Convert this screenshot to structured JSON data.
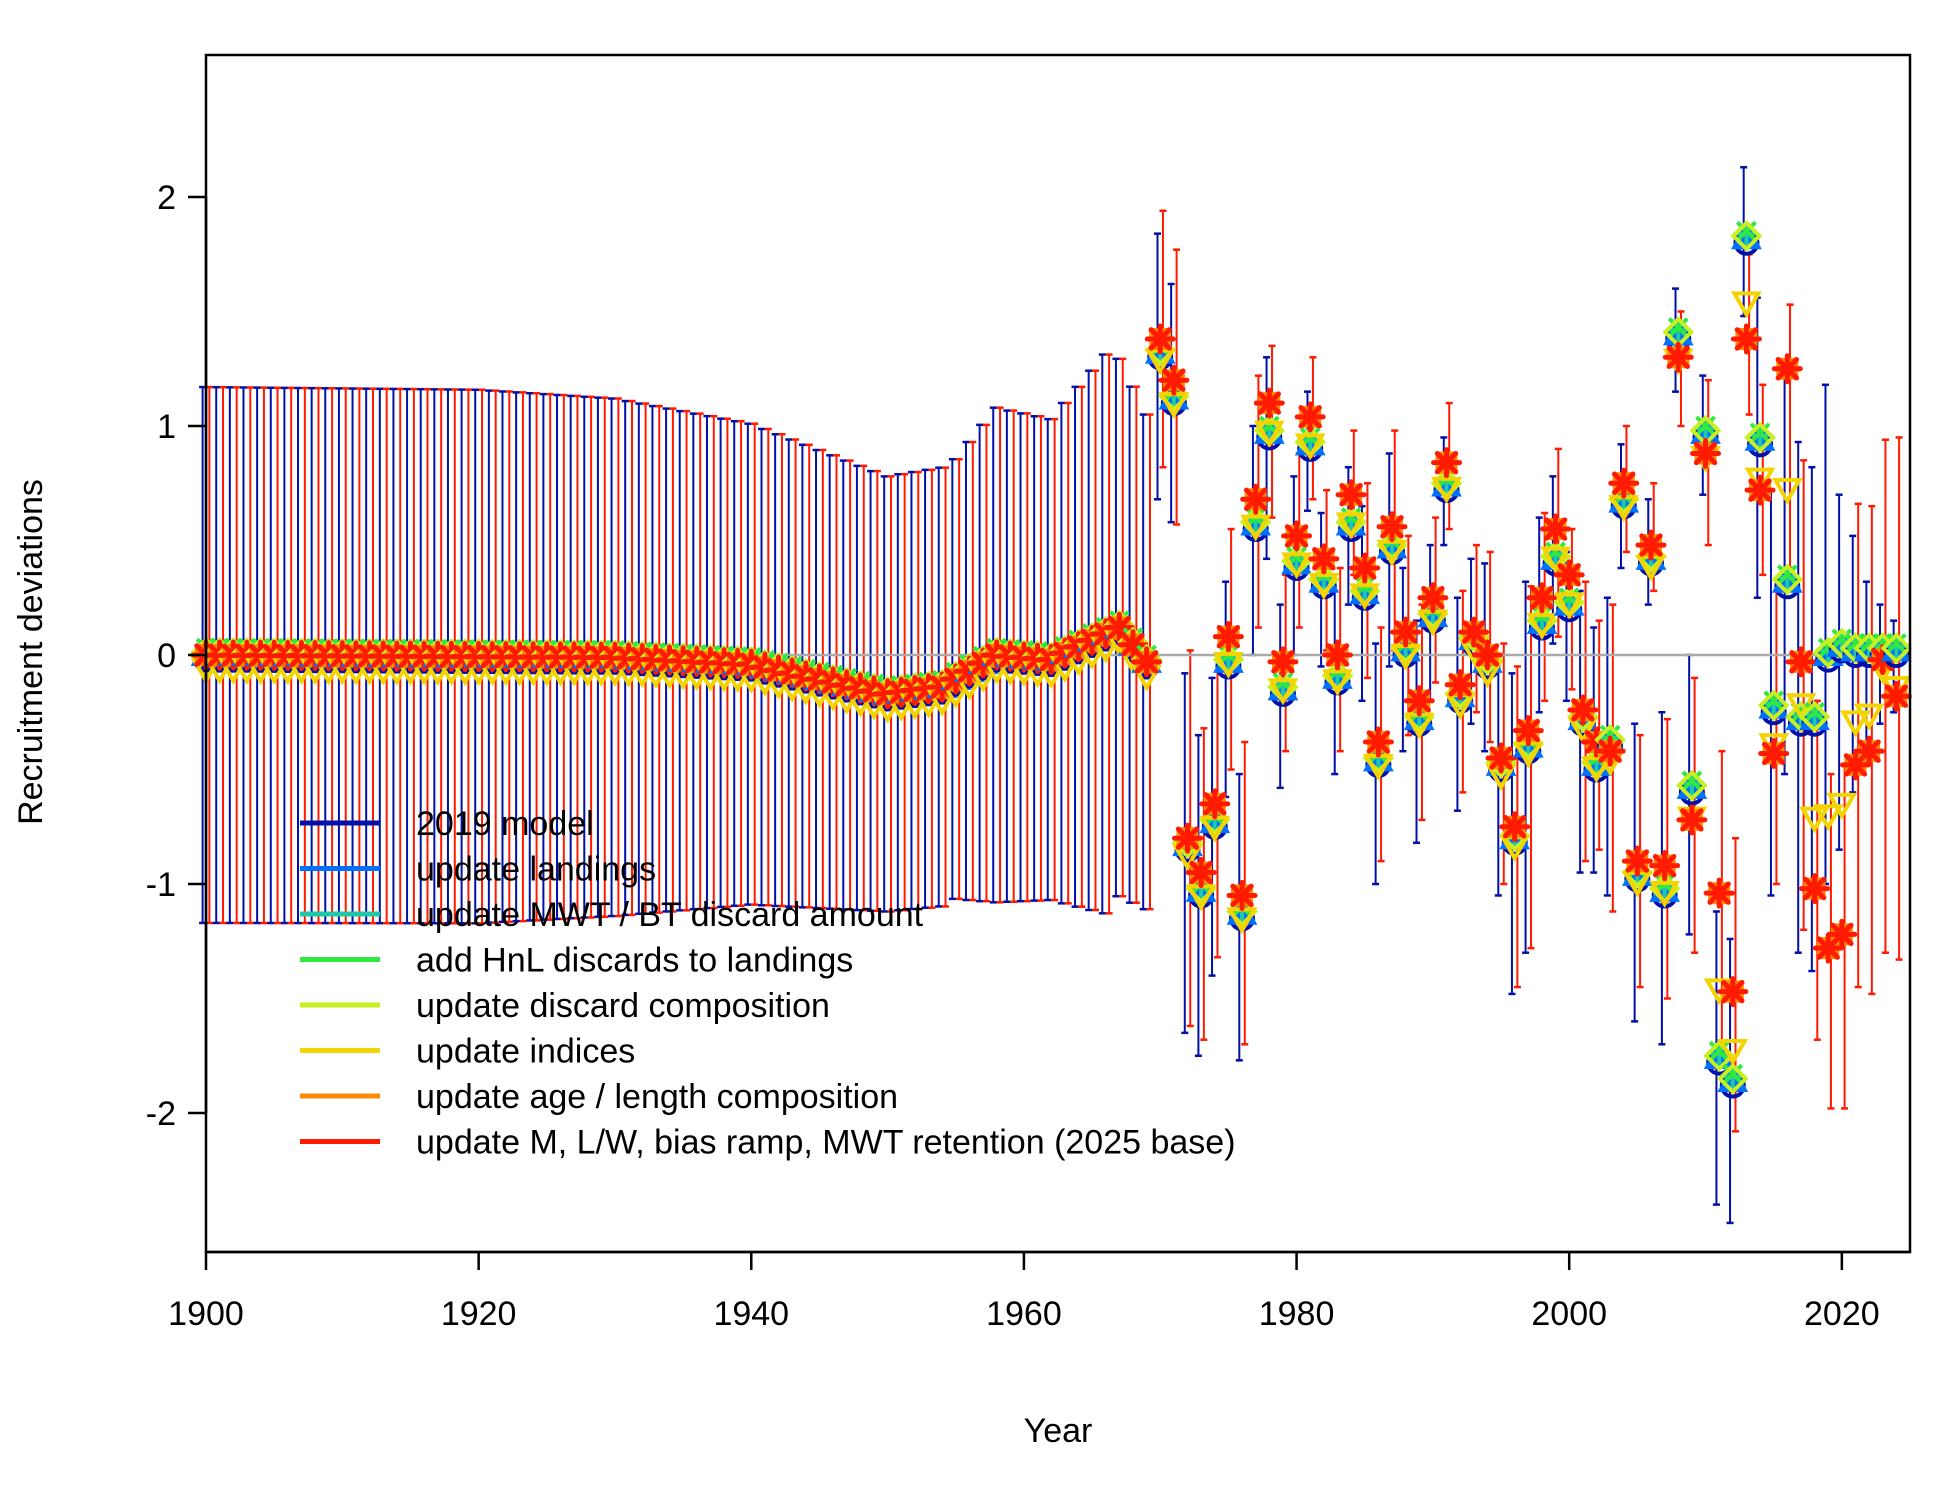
{
  "chart_data": {
    "type": "scatter",
    "title": "",
    "xlabel": "Year",
    "ylabel": "Recruitment deviations",
    "xlim": [
      1900,
      2025
    ],
    "ylim": [
      -2.6,
      2.6
    ],
    "xticks": [
      "1900",
      "1920",
      "1940",
      "1960",
      "1980",
      "2000",
      "2020"
    ],
    "yticks": [
      "-2",
      "-1",
      "0",
      "1",
      "2"
    ],
    "reference_line": 0,
    "reference_line_color": "#aaaaaa",
    "legend_position": "bottom-left",
    "legend": [
      {
        "label": "2019 model",
        "color": "#0010a8"
      },
      {
        "label": "update landings",
        "color": "#0070ff"
      },
      {
        "label": "update MWT / BT discard amount",
        "color": "#20c8a8"
      },
      {
        "label": "add HnL discards to landings",
        "color": "#30e840"
      },
      {
        "label": "update discard composition",
        "color": "#c8f020"
      },
      {
        "label": "update indices",
        "color": "#f4d400"
      },
      {
        "label": "update age / length composition",
        "color": "#ff8c00"
      },
      {
        "label": "update M, L/W, bias ramp, MWT retention (2025 base)",
        "color": "#ff1a00"
      }
    ],
    "interval_colors": {
      "model_2019": "#0010a8",
      "base_2025": "#ff1a00"
    },
    "early_years": {
      "start": 1900,
      "end": 1969,
      "value_knots": [
        [
          1900,
          0.0
        ],
        [
          1930,
          -0.01
        ],
        [
          1940,
          -0.04
        ],
        [
          1950,
          -0.17
        ],
        [
          1954,
          -0.14
        ],
        [
          1958,
          0.0
        ],
        [
          1962,
          -0.02
        ],
        [
          1967,
          0.12
        ],
        [
          1969,
          -0.03
        ]
      ],
      "bound_knots": [
        [
          1900,
          1.17
        ],
        [
          1920,
          1.165
        ],
        [
          1930,
          1.13
        ],
        [
          1940,
          1.05
        ],
        [
          1950,
          0.95
        ],
        [
          1955,
          0.96
        ],
        [
          1958,
          1.08
        ],
        [
          1962,
          1.05
        ],
        [
          1966,
          1.22
        ],
        [
          1969,
          1.08
        ]
      ]
    },
    "main_series": {
      "x": [
        1970,
        1971,
        1972,
        1973,
        1974,
        1975,
        1976,
        1977,
        1978,
        1979,
        1980,
        1981,
        1982,
        1983,
        1984,
        1985,
        1986,
        1987,
        1988,
        1989,
        1990,
        1991,
        1992,
        1993,
        1994,
        1995,
        1996,
        1997,
        1998,
        1999,
        2000,
        2001,
        2002,
        2003,
        2004,
        2005,
        2006,
        2007,
        2008,
        2009,
        2010,
        2011,
        2012,
        2013,
        2014,
        2015,
        2016,
        2017,
        2018,
        2019,
        2020,
        2021,
        2022,
        2023,
        2024
      ],
      "model_2019": [
        1.3,
        1.1,
        -0.85,
        -1.05,
        -0.75,
        -0.05,
        -1.15,
        0.55,
        0.95,
        -0.17,
        0.38,
        0.9,
        0.3,
        -0.12,
        0.55,
        0.25,
        -0.48,
        0.45,
        0.0,
        -0.3,
        0.15,
        0.72,
        -0.2,
        0.05,
        -0.05,
        -0.5,
        -0.82,
        -0.42,
        0.12,
        0.4,
        0.2,
        -0.3,
        -0.5,
        -0.4,
        0.65,
        -0.98,
        0.4,
        -1.05,
        1.38,
        -0.6,
        0.95,
        -1.78,
        -1.88,
        1.8,
        0.92,
        -0.25,
        0.3,
        -0.3,
        -0.3,
        -0.02,
        0.02,
        0.0,
        0.0,
        0.0,
        0.0
      ],
      "base_2025": [
        1.38,
        1.2,
        -0.8,
        -0.95,
        -0.65,
        0.08,
        -1.05,
        0.68,
        1.1,
        -0.03,
        0.52,
        1.04,
        0.42,
        0.0,
        0.7,
        0.38,
        -0.38,
        0.56,
        0.1,
        -0.2,
        0.25,
        0.84,
        -0.13,
        0.1,
        0.0,
        -0.45,
        -0.75,
        -0.33,
        0.25,
        0.55,
        0.35,
        -0.24,
        -0.38,
        -0.42,
        0.75,
        -0.9,
        0.48,
        -0.92,
        1.3,
        -0.72,
        0.88,
        -1.04,
        -1.47,
        1.38,
        0.72,
        -0.43,
        1.25,
        -0.03,
        -1.02,
        -1.28,
        -1.22,
        -0.48,
        -0.42,
        -0.02,
        -0.18
      ],
      "model_2019_lower": [
        0.68,
        0.58,
        -1.65,
        -1.75,
        -1.4,
        -0.62,
        -1.77,
        0.0,
        0.42,
        -0.58,
        0.0,
        0.63,
        -0.05,
        -0.52,
        0.22,
        -0.2,
        -1.0,
        -0.05,
        -0.42,
        -0.82,
        -0.2,
        0.48,
        -0.68,
        -0.3,
        -0.42,
        -1.05,
        -1.48,
        -1.3,
        -0.25,
        0.05,
        -0.2,
        -0.95,
        -0.95,
        -1.05,
        0.38,
        -1.6,
        0.22,
        -1.7,
        1.15,
        -1.22,
        0.7,
        -2.4,
        -2.48,
        1.48,
        0.25,
        -1.05,
        -0.52,
        -1.3,
        -1.38,
        -1.0,
        -0.85,
        -0.6,
        -0.42,
        -0.3,
        -0.25
      ],
      "model_2019_upper": [
        1.84,
        1.62,
        -0.08,
        -0.35,
        -0.1,
        0.32,
        -0.52,
        1.0,
        1.3,
        0.22,
        0.78,
        1.15,
        0.62,
        0.28,
        0.82,
        0.65,
        0.05,
        0.88,
        0.38,
        0.15,
        0.48,
        0.95,
        0.25,
        0.42,
        0.4,
        0.0,
        -0.08,
        0.32,
        0.6,
        0.78,
        0.45,
        0.28,
        0.12,
        0.25,
        0.92,
        -0.3,
        0.68,
        -0.25,
        1.6,
        0.0,
        1.22,
        -1.12,
        -1.24,
        2.13,
        1.56,
        0.72,
        1.22,
        0.93,
        0.82,
        1.18,
        0.7,
        0.52,
        0.32,
        0.22,
        0.15
      ],
      "base_2025_lower": [
        0.82,
        0.57,
        -1.62,
        -1.68,
        -1.32,
        -0.5,
        -1.7,
        0.12,
        0.6,
        -0.42,
        0.12,
        0.68,
        0.02,
        -0.42,
        0.35,
        -0.1,
        -0.9,
        0.02,
        -0.35,
        -0.72,
        -0.12,
        0.55,
        -0.6,
        -0.25,
        -0.38,
        -1.0,
        -1.45,
        -1.28,
        -0.2,
        0.08,
        -0.15,
        -0.9,
        -0.85,
        -1.12,
        0.45,
        -1.45,
        0.28,
        -1.5,
        1.0,
        -1.3,
        0.48,
        -1.8,
        -2.08,
        1.05,
        0.35,
        -1.0,
        0.38,
        -1.2,
        -1.68,
        -1.98,
        -1.98,
        -1.45,
        -1.48,
        -1.3,
        -1.33
      ],
      "base_2025_upper": [
        1.94,
        1.77,
        0.02,
        -0.32,
        0.0,
        0.55,
        -0.38,
        1.22,
        1.35,
        0.35,
        0.88,
        1.3,
        0.72,
        0.38,
        0.98,
        0.75,
        0.12,
        0.98,
        0.52,
        0.22,
        0.6,
        1.1,
        0.28,
        0.48,
        0.45,
        0.05,
        -0.05,
        0.3,
        0.62,
        0.9,
        0.55,
        0.32,
        0.15,
        0.22,
        1.0,
        -0.35,
        0.75,
        -0.28,
        1.5,
        -0.1,
        1.2,
        -0.42,
        -0.8,
        1.75,
        1.18,
        0.28,
        1.53,
        0.85,
        -0.2,
        -0.52,
        -0.48,
        0.66,
        0.65,
        0.94,
        0.95
      ],
      "intermediate_offsets": {
        "update landings": 0.02,
        "update MWT / BT discard amount": 0.04,
        "add HnL discards to landings": 0.05,
        "update discard composition": 0.03,
        "update indices": 0.0,
        "update age / length composition": 0.1
      }
    }
  }
}
